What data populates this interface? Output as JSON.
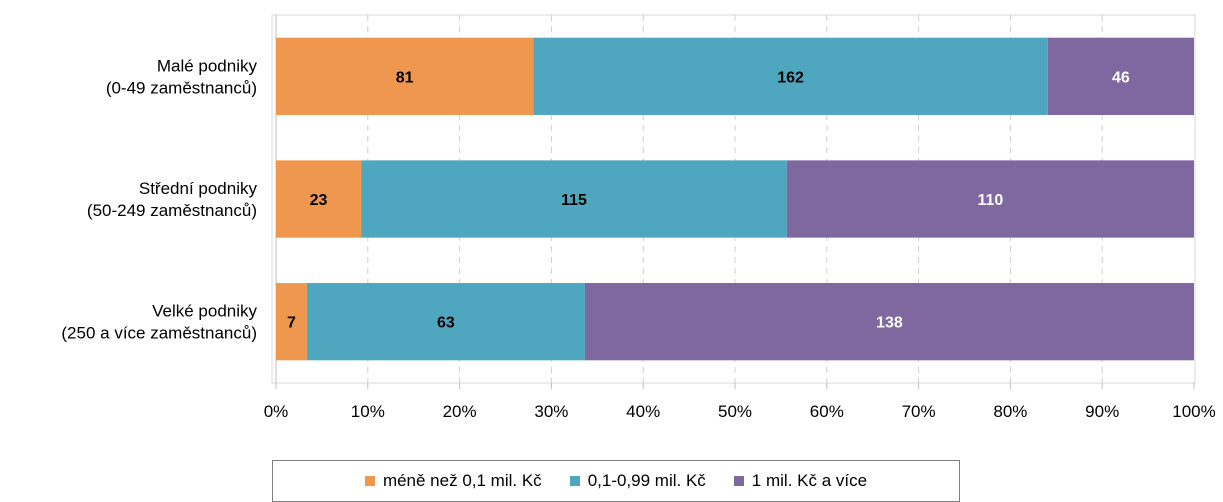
{
  "chart_data": {
    "type": "bar",
    "orientation": "horizontal",
    "stacked": "percent",
    "categories": [
      [
        "Malé podniky",
        "(0-49 zaměstnanců)"
      ],
      [
        "Střední podniky",
        "(50-249 zaměstnanců)"
      ],
      [
        "Velké podniky",
        "(250 a více zaměstnanců)"
      ]
    ],
    "series": [
      {
        "name": "méně než 0,1 mil. Kč",
        "color": "#F0974F",
        "label_color": "#000000",
        "values": [
          81,
          23,
          7
        ]
      },
      {
        "name": "0,1-0,99 mil. Kč",
        "color": "#4EA7BF",
        "label_color": "#000000",
        "values": [
          162,
          115,
          63
        ]
      },
      {
        "name": "1 mil. Kč a více",
        "color": "#7F679F",
        "label_color": "#FFFFFF",
        "values": [
          46,
          110,
          138
        ]
      }
    ],
    "x_ticks": [
      "0%",
      "10%",
      "20%",
      "30%",
      "40%",
      "50%",
      "60%",
      "70%",
      "80%",
      "90%",
      "100%"
    ],
    "xlim": [
      0,
      100
    ],
    "grid": "vertical-dashed",
    "legend_position": "bottom"
  }
}
